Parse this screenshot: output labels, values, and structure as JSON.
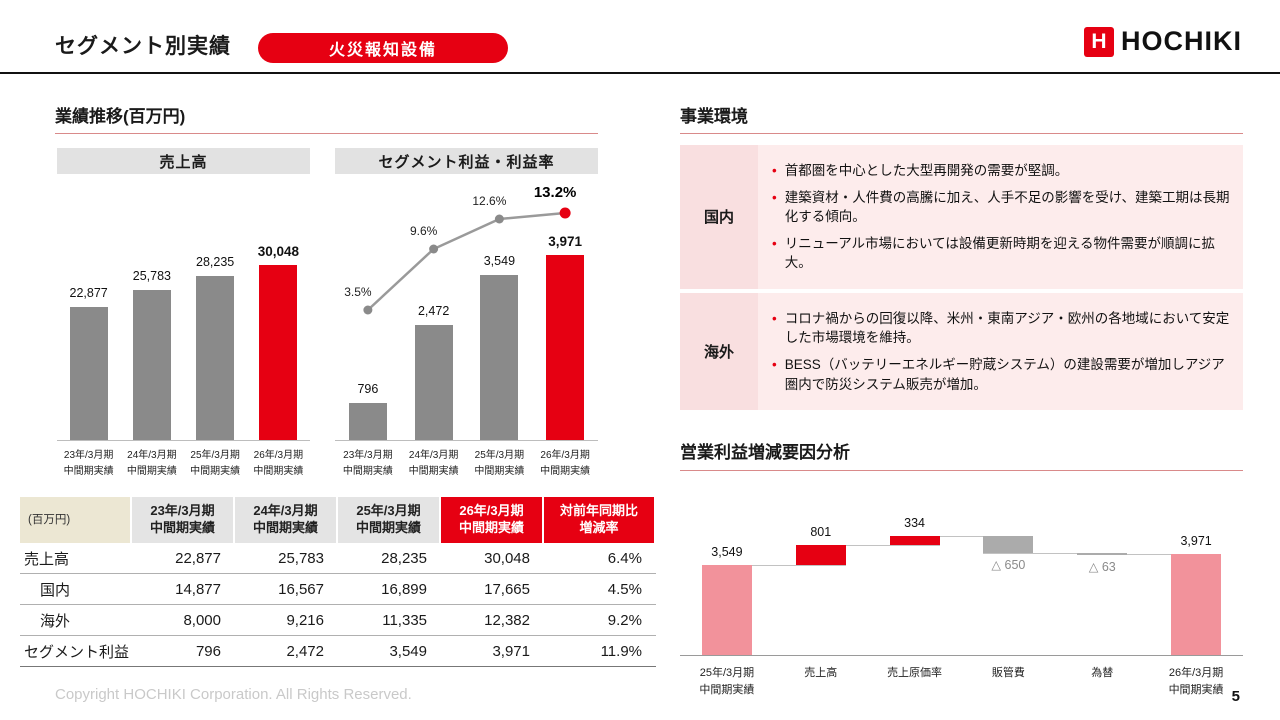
{
  "colors": {
    "accent": "#e60012",
    "bar_gray": "#8a8a8a",
    "line_gray": "#9a9a9a",
    "underline": "#d98a8a",
    "table_header_gray": "#e4e4e4",
    "table_header_beige": "#ece7d3",
    "env_label_bg": "#f9dfe0",
    "env_body_bg": "#fdecec",
    "waterfall_total": "#f2929b",
    "waterfall_increase": "#e60012",
    "waterfall_decrease": "#ababab"
  },
  "header": {
    "title": "セグメント別実績",
    "badge": "火災報知設備",
    "logo_text": "HOCHIKI",
    "logo_mark": "H"
  },
  "left": {
    "section_title": "業績推移(百万円)"
  },
  "right": {
    "env_title": "事業環境",
    "waterfall_title": "営業利益増減要因分析"
  },
  "chart_data": [
    {
      "id": "sales",
      "type": "bar",
      "title": "売上高",
      "categories": [
        [
          "23年/3月期",
          "中間期実績"
        ],
        [
          "24年/3月期",
          "中間期実績"
        ],
        [
          "25年/3月期",
          "中間期実績"
        ],
        [
          "26年/3月期",
          "中間期実績"
        ]
      ],
      "values": [
        22877,
        25783,
        28235,
        30048
      ],
      "labels": [
        "22,877",
        "25,783",
        "28,235",
        "30,048"
      ],
      "highlight_index": 3,
      "ylim": [
        0,
        30048
      ]
    },
    {
      "id": "profit",
      "type": "bar+line",
      "title": "セグメント利益・利益率",
      "categories": [
        [
          "23年/3月期",
          "中間期実績"
        ],
        [
          "24年/3月期",
          "中間期実績"
        ],
        [
          "25年/3月期",
          "中間期実績"
        ],
        [
          "26年/3月期",
          "中間期実績"
        ]
      ],
      "values": [
        796,
        2472,
        3549,
        3971
      ],
      "labels": [
        "796",
        "2,472",
        "3,549",
        "3,971"
      ],
      "line_values": [
        3.5,
        9.6,
        12.6,
        13.2
      ],
      "line_labels": [
        "3.5%",
        "9.6%",
        "12.6%",
        "13.2%"
      ],
      "highlight_index": 3,
      "ylim": [
        0,
        3971
      ]
    },
    {
      "id": "waterfall",
      "type": "waterfall",
      "title": "営業利益増減要因分析",
      "categories": [
        [
          "25年/3月期",
          "中間期実績"
        ],
        [
          "売上高"
        ],
        [
          "売上原価率"
        ],
        [
          "販管費"
        ],
        [
          "為替"
        ],
        [
          "26年/3月期",
          "中間期実績"
        ]
      ],
      "steps": [
        {
          "label": "3,549",
          "value": 3549,
          "kind": "total"
        },
        {
          "label": "801",
          "value": 801,
          "kind": "increase"
        },
        {
          "label": "334",
          "value": 334,
          "kind": "increase"
        },
        {
          "label": "△ 650",
          "value": -650,
          "kind": "decrease"
        },
        {
          "label": "△ 63",
          "value": -63,
          "kind": "decrease"
        },
        {
          "label": "3,971",
          "value": 3971,
          "kind": "total"
        }
      ]
    }
  ],
  "table": {
    "unit_label": "(百万円)",
    "columns": [
      [
        "23年/3月期",
        "中間期実績"
      ],
      [
        "24年/3月期",
        "中間期実績"
      ],
      [
        "25年/3月期",
        "中間期実績"
      ],
      [
        "26年/3月期",
        "中間期実績"
      ],
      [
        "対前年同期比",
        "増減率"
      ]
    ],
    "highlight_columns": [
      3,
      4
    ],
    "rows": [
      {
        "label": "売上高",
        "indent": false,
        "cells": [
          "22,877",
          "25,783",
          "28,235",
          "30,048",
          "6.4%"
        ]
      },
      {
        "label": "国内",
        "indent": true,
        "cells": [
          "14,877",
          "16,567",
          "16,899",
          "17,665",
          "4.5%"
        ]
      },
      {
        "label": "海外",
        "indent": true,
        "cells": [
          "8,000",
          "9,216",
          "11,335",
          "12,382",
          "9.2%"
        ]
      },
      {
        "label": "セグメント利益",
        "indent": false,
        "cells": [
          "796",
          "2,472",
          "3,549",
          "3,971",
          "11.9%"
        ]
      }
    ]
  },
  "business_env": {
    "sections": [
      {
        "label": "国内",
        "bullets": [
          "首都圏を中心とした大型再開発の需要が堅調。",
          "建築資材・人件費の高騰に加え、人手不足の影響を受け、建築工期は長期化する傾向。",
          "リニューアル市場においては設備更新時期を迎える物件需要が順調に拡大。"
        ]
      },
      {
        "label": "海外",
        "bullets": [
          "コロナ禍からの回復以降、米州・東南アジア・欧州の各地域において安定した市場環境を維持。",
          "BESS（バッテリーエネルギー貯蔵システム）の建設需要が増加しアジア圏内で防災システム販売が増加。"
        ]
      }
    ]
  },
  "footer": {
    "copyright": "Copyright HOCHIKI Corporation. All Rights Reserved.",
    "page": "5"
  }
}
